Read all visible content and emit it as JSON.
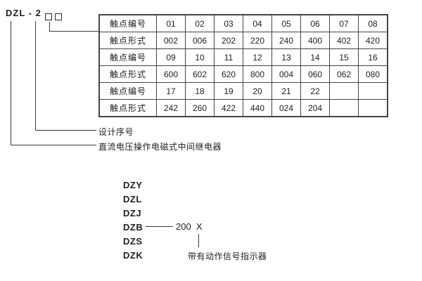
{
  "model_code": {
    "text": "DZL - 2",
    "box_count": 2
  },
  "table": {
    "rows": [
      {
        "label": "触点编号",
        "values": [
          "01",
          "02",
          "03",
          "04",
          "05",
          "06",
          "07",
          "08"
        ]
      },
      {
        "label": "触点形式",
        "values": [
          "002",
          "006",
          "202",
          "220",
          "240",
          "400",
          "402",
          "420"
        ]
      },
      {
        "label": "触点编号",
        "values": [
          "09",
          "10",
          "11",
          "12",
          "13",
          "14",
          "15",
          "16"
        ]
      },
      {
        "label": "触点形式",
        "values": [
          "600",
          "602",
          "620",
          "800",
          "004",
          "060",
          "062",
          "080"
        ]
      },
      {
        "label": "触点编号",
        "values": [
          "17",
          "18",
          "19",
          "20",
          "21",
          "22",
          "",
          ""
        ]
      },
      {
        "label": "触点形式",
        "values": [
          "242",
          "260",
          "422",
          "440",
          "024",
          "204",
          "",
          ""
        ]
      }
    ]
  },
  "callouts": {
    "design_serial": "设计序号",
    "relay_description": "直流电压操作电磁式中间继电器"
  },
  "series": {
    "items": [
      "DZY",
      "DZL",
      "DZJ",
      "DZB",
      "DZS",
      "DZK"
    ],
    "suffix_number": "200",
    "suffix_letter": "X",
    "indicator_note": "带有动作信号指示器"
  },
  "colors": {
    "line": "#3a3a3a",
    "text": "#1f1f1f",
    "table_border": "#444444",
    "background": "#ffffff"
  }
}
